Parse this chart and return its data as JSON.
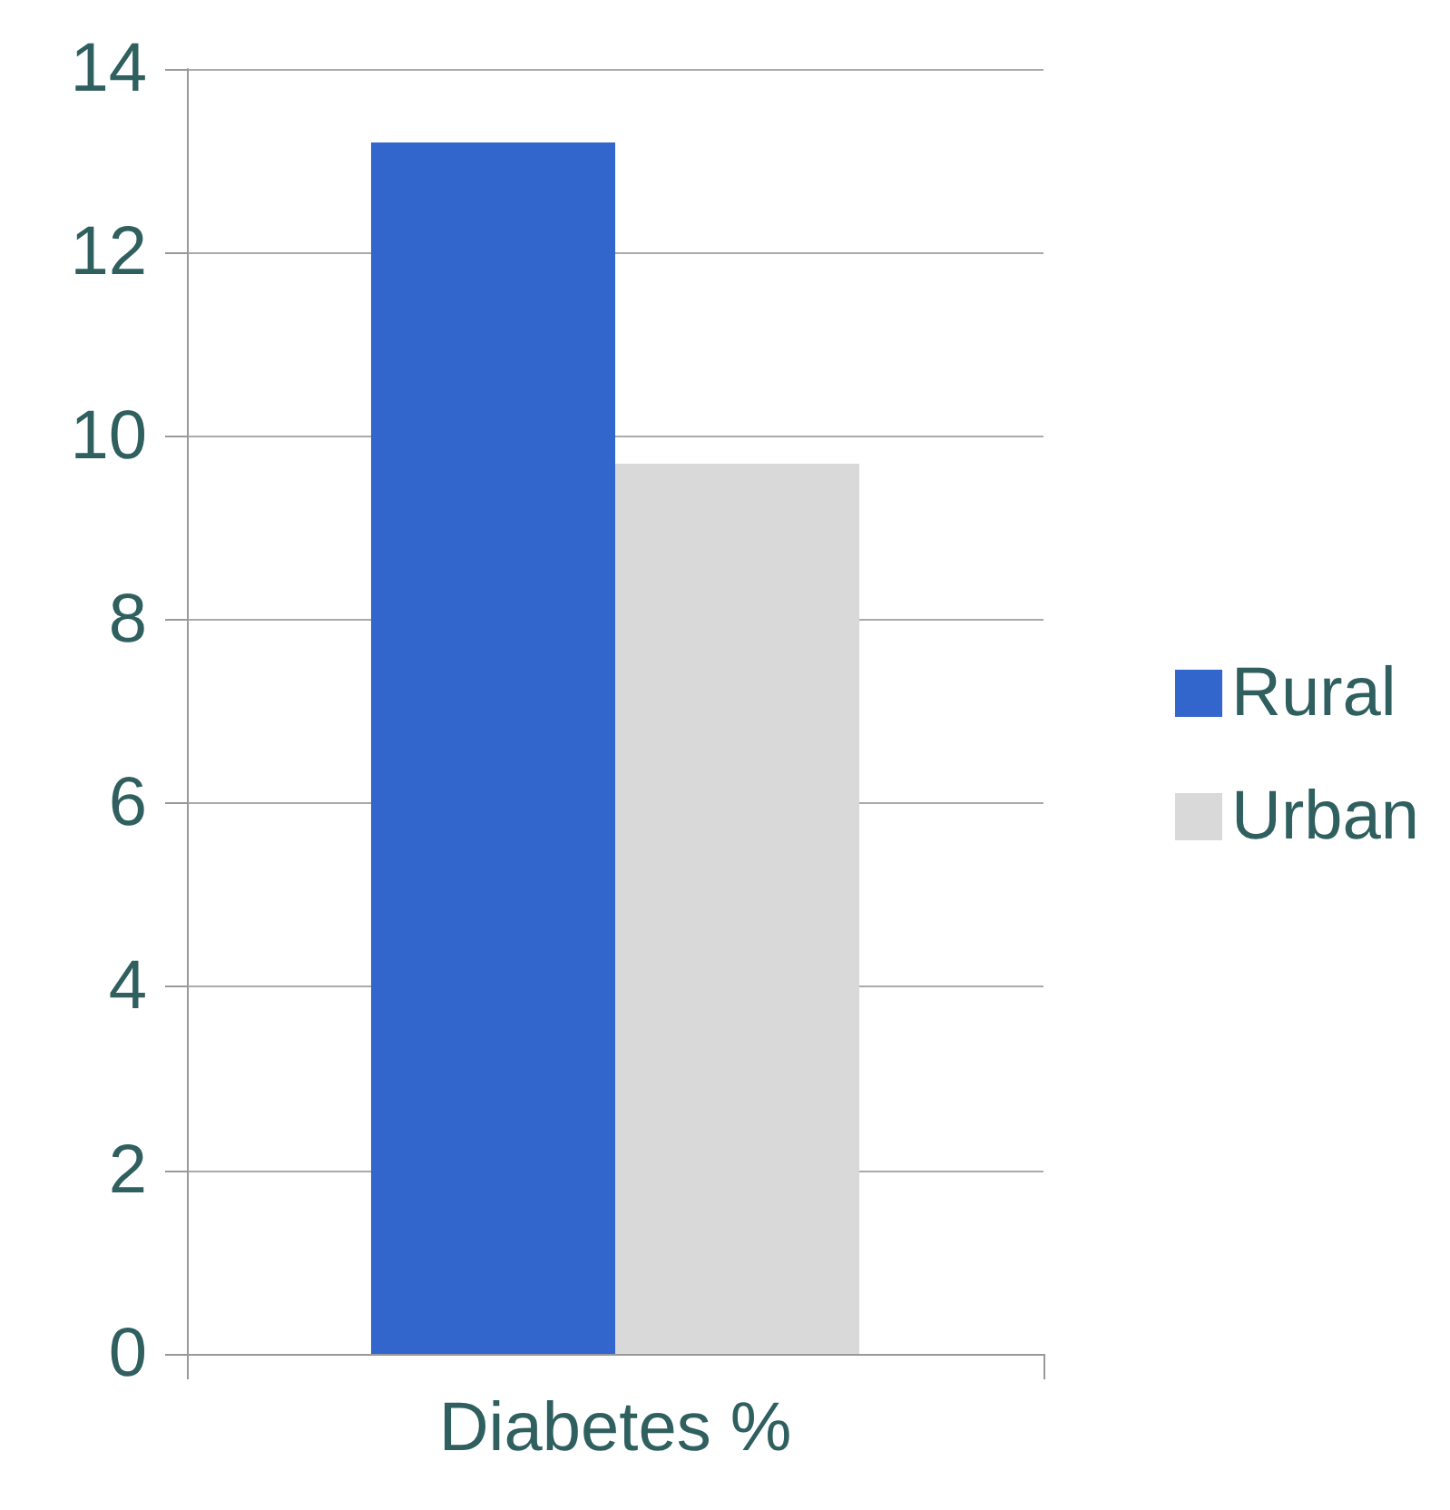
{
  "chart_data": {
    "type": "bar",
    "categories": [
      "Diabetes %"
    ],
    "series": [
      {
        "name": "Rural",
        "color": "#3366cc",
        "values": [
          13.2
        ]
      },
      {
        "name": "Urban",
        "color": "#d9d9d9",
        "values": [
          9.7
        ]
      }
    ],
    "ylim": [
      0,
      14
    ],
    "yticks": [
      0,
      2,
      4,
      6,
      8,
      10,
      12,
      14
    ],
    "grid": "y",
    "legend": "right"
  }
}
